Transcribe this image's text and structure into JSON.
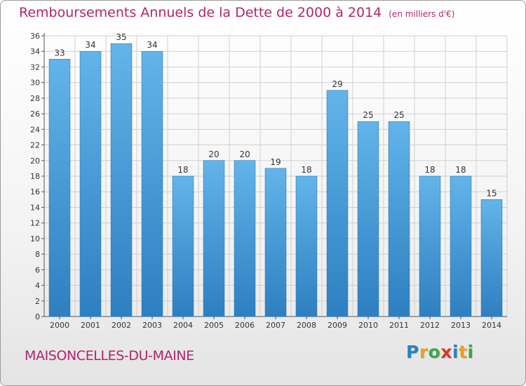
{
  "header": {
    "title": "Remboursements Annuels de la Dette de 2000 à 2014",
    "unit": "(en milliers d'€)"
  },
  "footer": {
    "commune": "MAISONCELLES-DU-MAINE",
    "brand": [
      "P",
      "r",
      "o",
      "x",
      "i",
      "t",
      "i"
    ],
    "brand_colors": [
      "#2a7fc8",
      "#e8a020",
      "#3aa64a",
      "#d8382e",
      "#2a7fc8",
      "#e8a020",
      "#3aa64a"
    ]
  },
  "colors": {
    "title": "#b3246e",
    "bar_top": "#62b4ea",
    "bar_bottom": "#2d7fc0",
    "grid": "#d0d0d0"
  },
  "chart_data": {
    "type": "bar",
    "categories": [
      "2000",
      "2001",
      "2002",
      "2003",
      "2004",
      "2005",
      "2006",
      "2007",
      "2008",
      "2009",
      "2010",
      "2011",
      "2012",
      "2013",
      "2014"
    ],
    "values": [
      33,
      34,
      35,
      34,
      18,
      20,
      20,
      19,
      18,
      29,
      25,
      25,
      18,
      18,
      15
    ],
    "ylim": [
      0,
      36
    ],
    "yticks": [
      0,
      2,
      4,
      6,
      8,
      10,
      12,
      14,
      16,
      18,
      20,
      22,
      24,
      26,
      28,
      30,
      32,
      34,
      36
    ],
    "grid": true,
    "data_labels": true
  }
}
